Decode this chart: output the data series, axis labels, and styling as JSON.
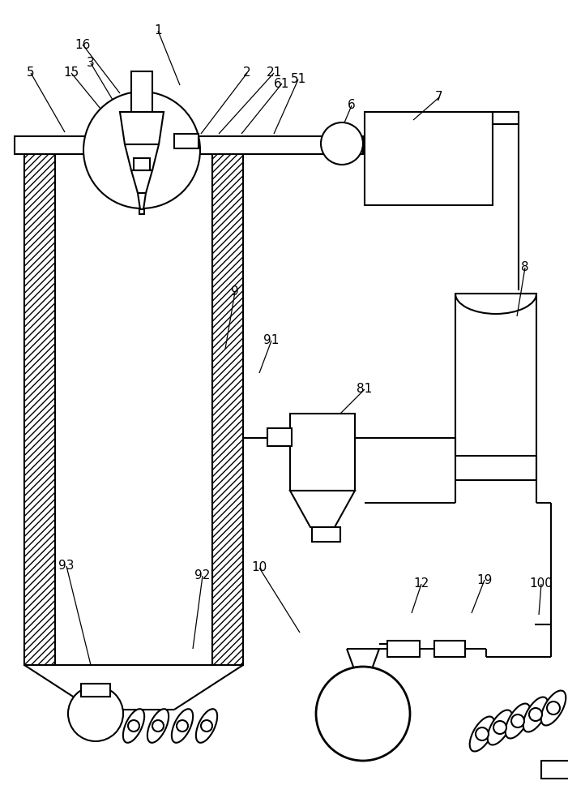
{
  "bg": "#ffffff",
  "lc": "#000000",
  "lw": 1.5,
  "lw_thin": 0.9,
  "labels": {
    "1": [
      195,
      38,
      222,
      105
    ],
    "16": [
      102,
      55,
      148,
      115
    ],
    "3": [
      112,
      78,
      148,
      138
    ],
    "15": [
      88,
      90,
      133,
      145
    ],
    "5": [
      38,
      90,
      80,
      163
    ],
    "2": [
      305,
      90,
      248,
      165
    ],
    "21": [
      338,
      90,
      270,
      165
    ],
    "61": [
      348,
      103,
      298,
      165
    ],
    "51": [
      368,
      98,
      338,
      165
    ],
    "6": [
      434,
      130,
      420,
      163
    ],
    "7": [
      542,
      120,
      510,
      148
    ],
    "8": [
      648,
      330,
      638,
      390
    ],
    "9": [
      290,
      360,
      278,
      430
    ],
    "91": [
      335,
      420,
      320,
      460
    ],
    "81": [
      450,
      480,
      420,
      510
    ],
    "10": [
      320,
      700,
      370,
      780
    ],
    "92": [
      250,
      710,
      238,
      800
    ],
    "93": [
      82,
      698,
      112,
      820
    ],
    "12": [
      520,
      720,
      508,
      756
    ],
    "19": [
      598,
      715,
      582,
      756
    ],
    "100": [
      668,
      720,
      665,
      758
    ]
  }
}
